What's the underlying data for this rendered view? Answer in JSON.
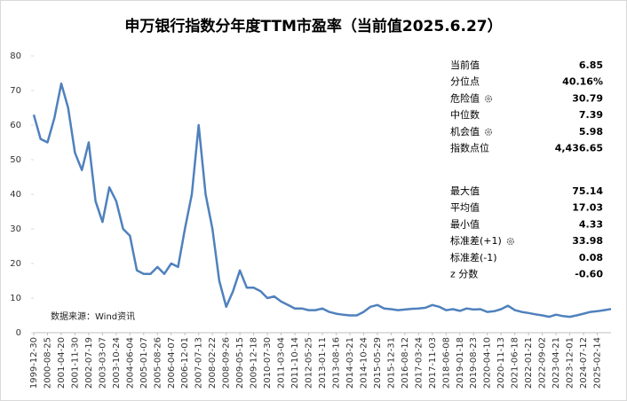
{
  "chart_data": {
    "type": "line",
    "title": "申万银行指数分年度TTM市盈率（当前值2025.6.27）",
    "source": "数据来源：Wind资讯",
    "color": "#4f81bd",
    "ylim": [
      0,
      80
    ],
    "yticks": [
      0,
      10,
      20,
      30,
      40,
      50,
      60,
      70,
      80
    ],
    "categories": [
      "1999-12-30",
      null,
      "2000-08-25",
      null,
      "2001-04-20",
      null,
      "2001-11-30",
      null,
      "2002-07-19",
      null,
      "2003-03-07",
      null,
      "2003-10-24",
      null,
      "2004-06-04",
      null,
      "2005-01-07",
      null,
      "2005-08-26",
      null,
      "2006-04-07",
      null,
      "2006-12-01",
      null,
      "2007-07-13",
      null,
      "2008-02-22",
      null,
      "2008-09-26",
      null,
      "2009-05-15",
      null,
      "2009-12-18",
      null,
      "2010-07-30",
      null,
      "2011-03-04",
      null,
      "2011-10-14",
      null,
      "2012-05-25",
      null,
      "2013-01-11",
      null,
      "2013-08-16",
      null,
      "2014-03-21",
      null,
      "2014-10-24",
      null,
      "2015-05-29",
      null,
      "2015-12-31",
      null,
      "2016-08-12",
      null,
      "2017-03-24",
      null,
      "2017-11-03",
      null,
      "2018-06-08",
      null,
      "2019-01-18",
      null,
      "2019-08-23",
      null,
      "2020-04-10",
      null,
      "2020-11-13",
      null,
      "2021-06-18",
      null,
      "2022-01-21",
      null,
      "2022-09-02",
      null,
      "2023-04-21",
      null,
      "2023-12-01",
      null,
      "2024-07-12",
      null,
      "2025-02-14",
      null,
      null
    ],
    "values": [
      63,
      56,
      55,
      62,
      72,
      65,
      52,
      47,
      55,
      38,
      32,
      42,
      38,
      30,
      28,
      18,
      17,
      17,
      19,
      17,
      20,
      19,
      30,
      40,
      60,
      40,
      30,
      15,
      7.5,
      12,
      18,
      13,
      13,
      12,
      10,
      10.5,
      9,
      8,
      7,
      7,
      6.5,
      6.5,
      7,
      6,
      5.5,
      5.2,
      5,
      5,
      6,
      7.5,
      8,
      7,
      6.8,
      6.5,
      6.7,
      6.9,
      7,
      7.2,
      8,
      7.5,
      6.5,
      6.8,
      6.3,
      7,
      6.7,
      6.8,
      6,
      6.2,
      6.8,
      7.8,
      6.5,
      6,
      5.7,
      5.3,
      5,
      4.6,
      5.2,
      4.8,
      4.6,
      5,
      5.5,
      6,
      6.2,
      6.5,
      6.85
    ],
    "stats": [
      [
        {
          "label": "当前值",
          "value": "6.85"
        },
        {
          "label": "分位点",
          "value": "40.16%"
        },
        {
          "label": "危险值",
          "value": "30.79",
          "icon": true
        },
        {
          "label": "中位数",
          "value": "7.39"
        },
        {
          "label": "机会值",
          "value": "5.98",
          "icon": true
        },
        {
          "label": "指数点位",
          "value": "4,436.65"
        }
      ],
      [
        {
          "label": "最大值",
          "value": "75.14"
        },
        {
          "label": "平均值",
          "value": "17.03"
        },
        {
          "label": "最小值",
          "value": "4.33"
        },
        {
          "label": "标准差(+1)",
          "value": "33.98",
          "icon": true
        },
        {
          "label": "标准差(-1)",
          "value": "0.08"
        },
        {
          "label": "z 分数",
          "value": "-0.60"
        }
      ]
    ]
  }
}
